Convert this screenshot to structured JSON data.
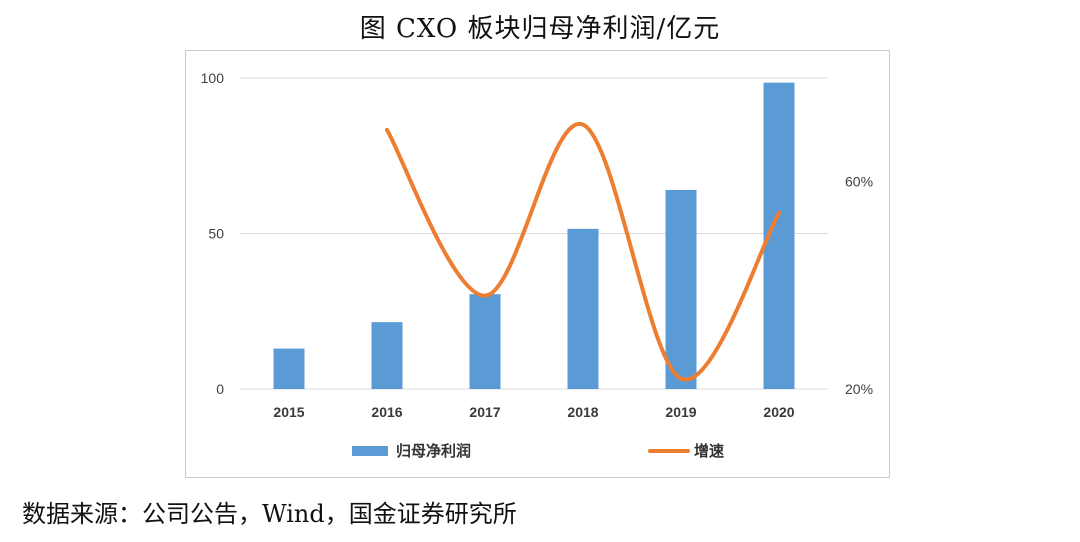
{
  "title": "图 CXO 板块归母净利润/亿元",
  "source": "数据来源：公司公告，Wind，国金证券研究所",
  "chart_data": {
    "type": "bar",
    "categories": [
      "2015",
      "2016",
      "2017",
      "2018",
      "2019",
      "2020"
    ],
    "series": [
      {
        "name": "归母净利润",
        "type": "bar",
        "axis": "left",
        "color": "#5b9bd5",
        "values": [
          13,
          21.5,
          30.5,
          51.5,
          64,
          98.5
        ]
      },
      {
        "name": "增速",
        "type": "line",
        "axis": "right",
        "color": "#ed7d31",
        "values": [
          null,
          70,
          38,
          71,
          22,
          54
        ]
      }
    ],
    "left_axis": {
      "ylim": [
        0,
        100
      ],
      "ticks": [
        "0",
        "50",
        "100"
      ]
    },
    "right_axis": {
      "ylim": [
        20,
        80
      ],
      "ticks": [
        "20%",
        "60%"
      ],
      "tick_values": [
        20,
        60
      ]
    },
    "grid": true,
    "legend": "bottom"
  }
}
